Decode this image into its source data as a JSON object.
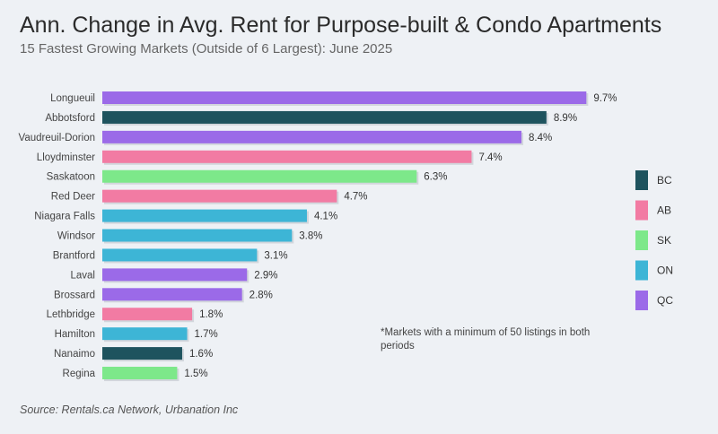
{
  "title": "Ann. Change in Avg. Rent for Purpose-built & Condo Apartments",
  "subtitle": "15 Fastest Growing Markets (Outside of 6 Largest): June 2025",
  "footnote": "*Markets with a minimum of 50 listings in both periods",
  "source": "Source: Rentals.ca Network, Urbanation Inc",
  "colors": {
    "BC": "#1e535e",
    "AB": "#f27ba3",
    "SK": "#7de88a",
    "ON": "#3db5d6",
    "QC": "#9b6ae8"
  },
  "chart_data": {
    "type": "bar",
    "orientation": "horizontal",
    "title": "Ann. Change in Avg. Rent for Purpose-built & Condo Apartments",
    "subtitle": "15 Fastest Growing Markets (Outside of 6 Largest): June 2025",
    "xlabel": "",
    "ylabel": "",
    "xlim": [
      0,
      10
    ],
    "grid": false,
    "legend_position": "right",
    "legend": [
      "BC",
      "AB",
      "SK",
      "ON",
      "QC"
    ],
    "categories": [
      "Longueuil",
      "Abbotsford",
      "Vaudreuil-Dorion",
      "Lloydminster",
      "Saskatoon",
      "Red Deer",
      "Niagara Falls",
      "Windsor",
      "Brantford",
      "Laval",
      "Brossard",
      "Lethbridge",
      "Hamilton",
      "Nanaimo",
      "Regina"
    ],
    "values": [
      9.7,
      8.9,
      8.4,
      7.4,
      6.3,
      4.7,
      4.1,
      3.8,
      3.1,
      2.9,
      2.8,
      1.8,
      1.7,
      1.6,
      1.5
    ],
    "labels": [
      "9.7%",
      "8.9%",
      "8.4%",
      "7.4%",
      "6.3%",
      "4.7%",
      "4.1%",
      "3.8%",
      "3.1%",
      "2.9%",
      "2.8%",
      "1.8%",
      "1.7%",
      "1.6%",
      "1.5%"
    ],
    "province": [
      "QC",
      "BC",
      "QC",
      "AB",
      "SK",
      "AB",
      "ON",
      "ON",
      "ON",
      "QC",
      "QC",
      "AB",
      "ON",
      "BC",
      "SK"
    ]
  }
}
